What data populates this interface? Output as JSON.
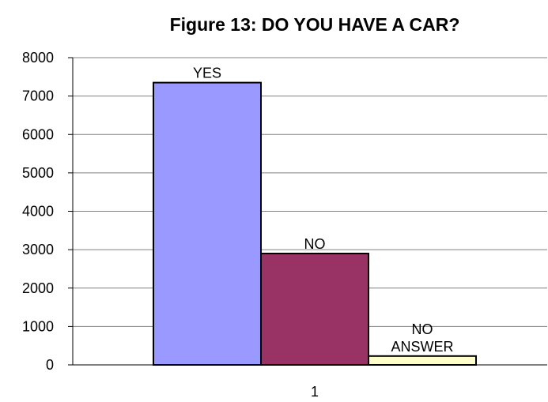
{
  "chart_data": {
    "type": "bar",
    "title": "Figure 13: DO YOU HAVE A CAR?",
    "xlabel": "",
    "ylabel": "",
    "categories": [
      "1"
    ],
    "ylim": [
      0,
      8000
    ],
    "y_ticks": [
      0,
      1000,
      2000,
      3000,
      4000,
      5000,
      6000,
      7000,
      8000
    ],
    "grid": true,
    "legend": "none",
    "series": [
      {
        "label_lines": [
          "YES"
        ],
        "values": [
          7350
        ],
        "color": "#9999ff"
      },
      {
        "label_lines": [
          "NO"
        ],
        "values": [
          2900
        ],
        "color": "#993366"
      },
      {
        "label_lines": [
          "NO",
          "ANSWER"
        ],
        "values": [
          230
        ],
        "color": "#ffffcc"
      }
    ]
  }
}
